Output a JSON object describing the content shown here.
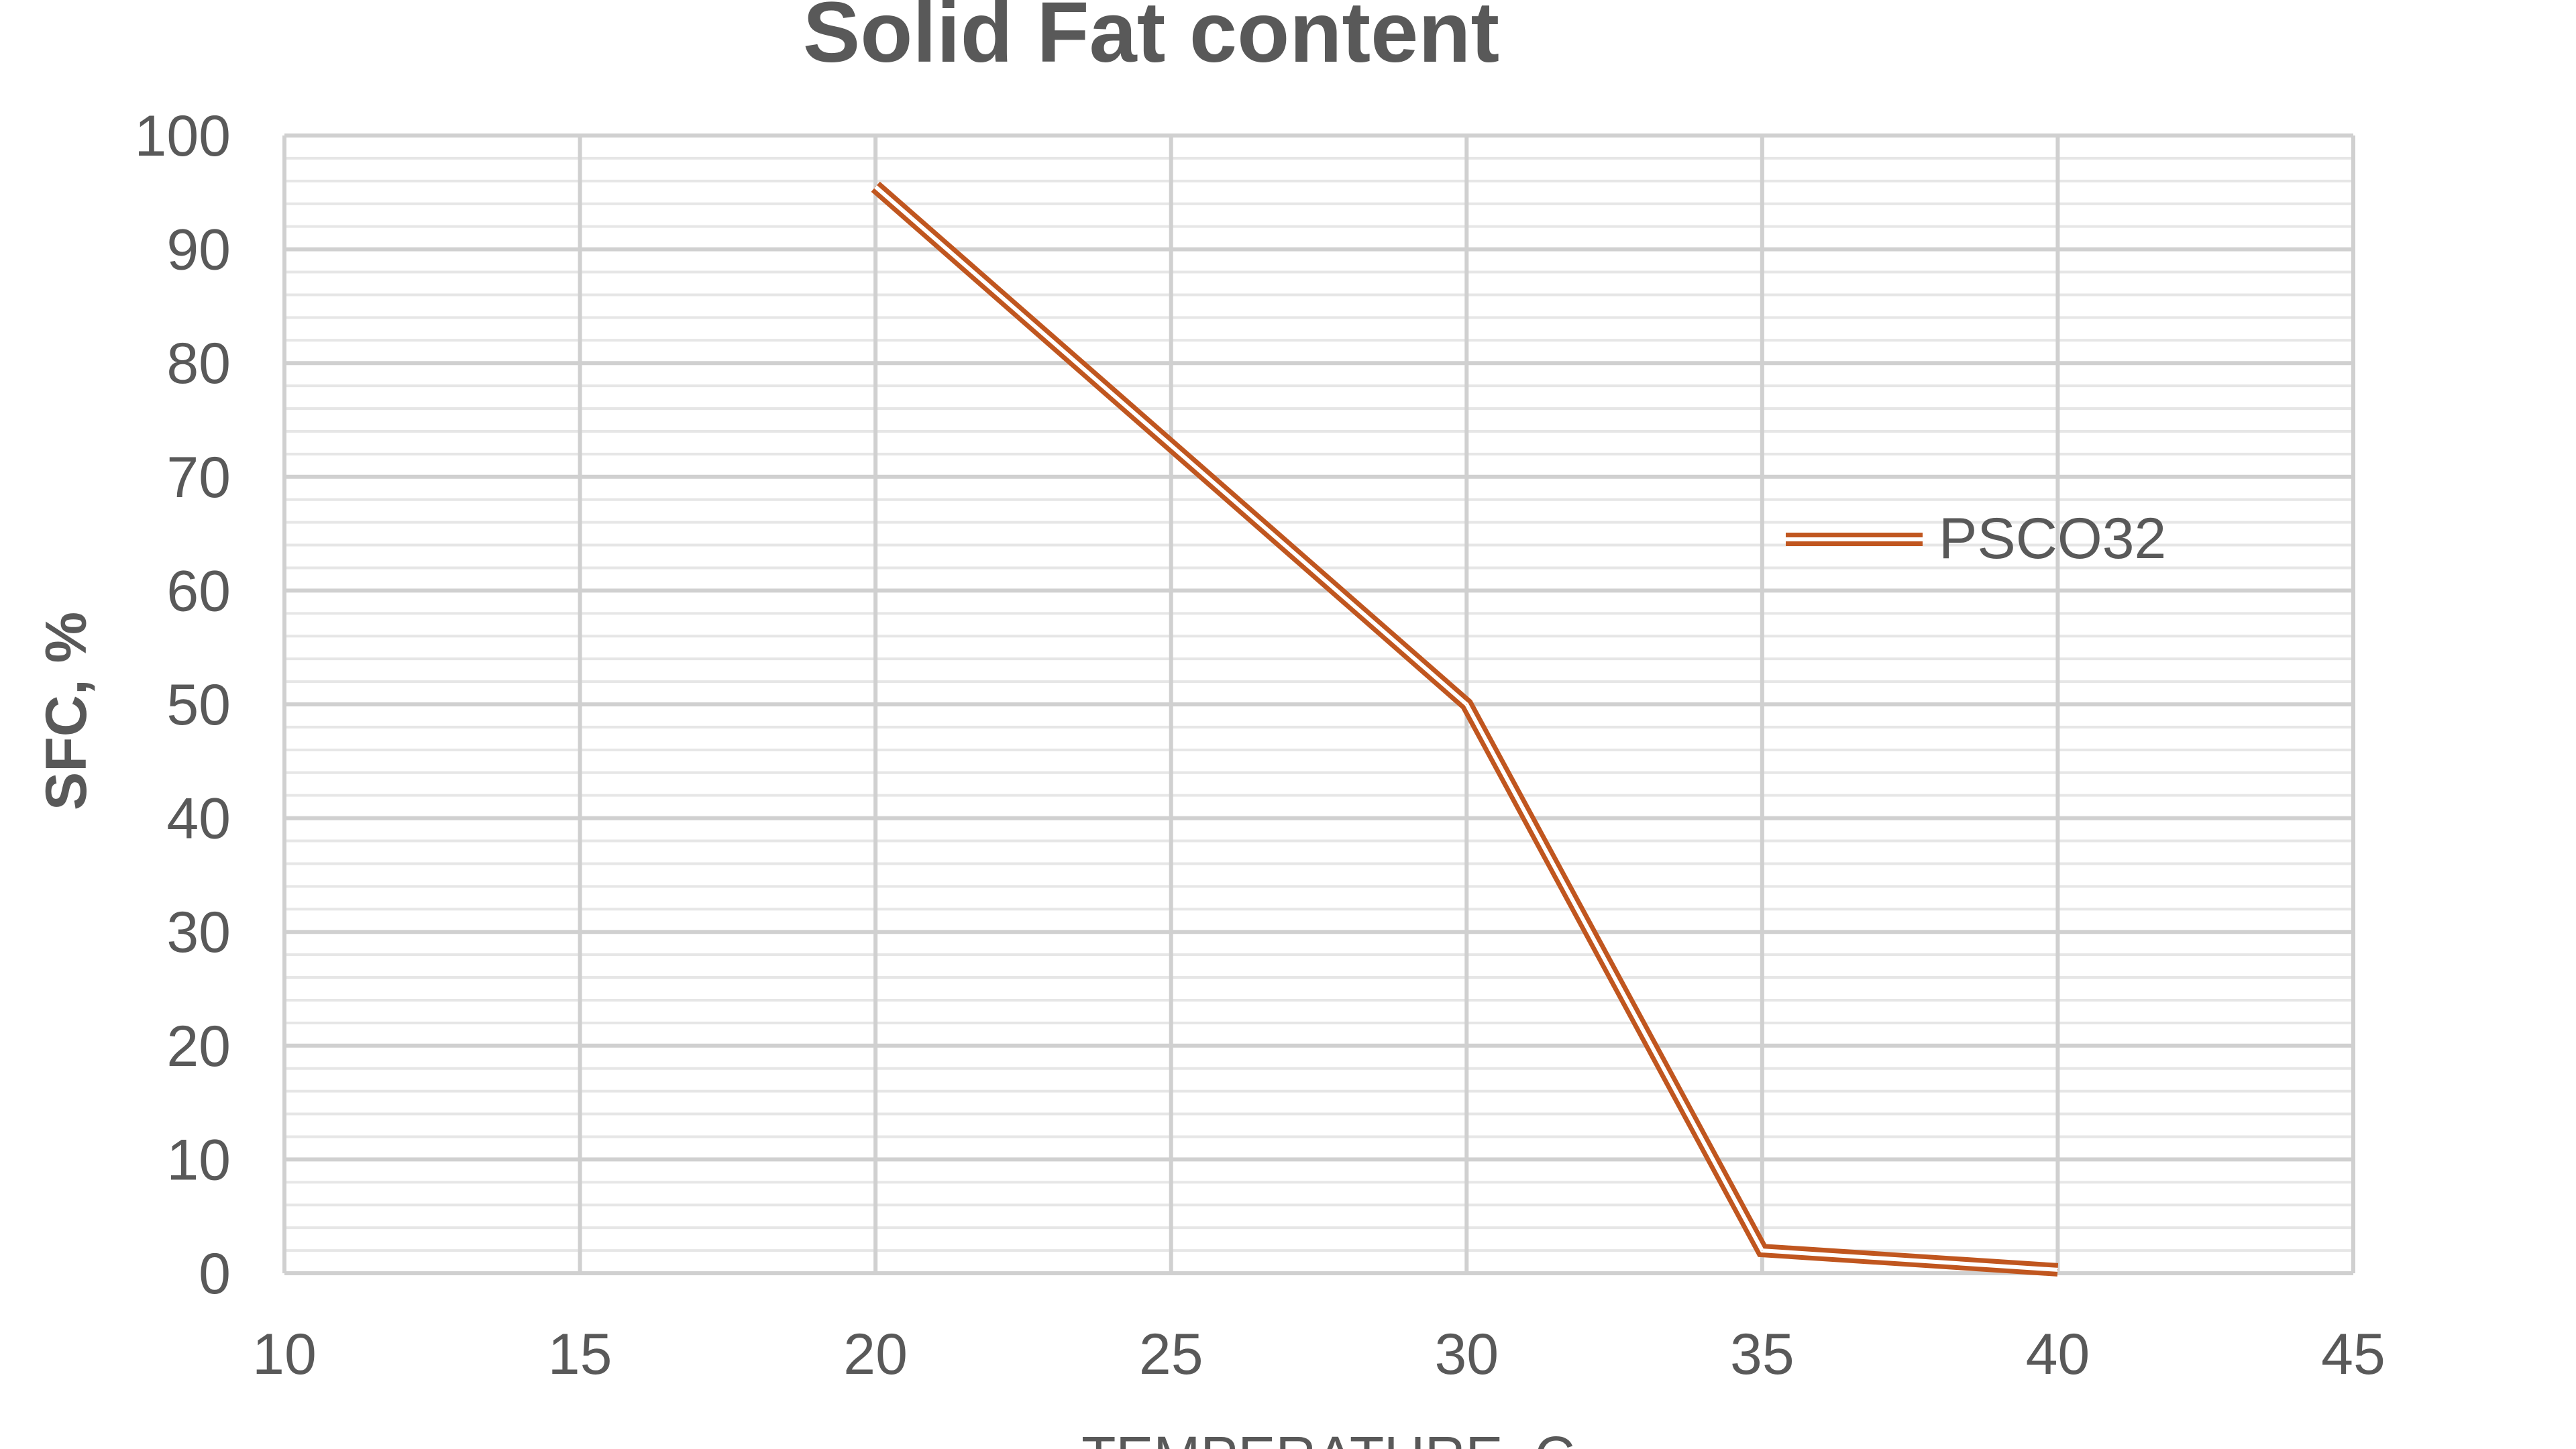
{
  "chart_data": {
    "type": "line",
    "title": "Solid Fat content",
    "xlabel": "TEMPERATURE, C",
    "ylabel": "SFC, %",
    "xlim": [
      10,
      45
    ],
    "ylim": [
      0,
      100
    ],
    "x_ticks": [
      10,
      15,
      20,
      25,
      30,
      35,
      40,
      45
    ],
    "y_ticks": [
      0,
      10,
      20,
      30,
      40,
      50,
      60,
      70,
      80,
      90,
      100
    ],
    "grid": true,
    "legend_position": "right",
    "series": [
      {
        "name": "PSCO32",
        "color": "#C0561F",
        "x": [
          20,
          30,
          35,
          40
        ],
        "y": [
          95.5,
          50,
          2,
          0.3
        ]
      }
    ]
  }
}
